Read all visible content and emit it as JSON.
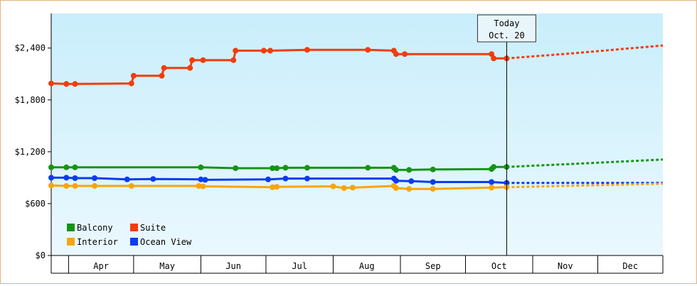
{
  "chart_data": {
    "type": "line",
    "ylim": [
      0,
      2800
    ],
    "y_ticks": [
      "$0",
      "$600",
      "$1,200",
      "$1,800",
      "$2,400"
    ],
    "y_tick_values": [
      0,
      600,
      1200,
      1800,
      2400
    ],
    "x_range": [
      "2016-03-24",
      "2016-12-31"
    ],
    "months": [
      {
        "label": "Apr",
        "start": "2016-04-01",
        "end": "2016-05-01"
      },
      {
        "label": "May",
        "start": "2016-05-01",
        "end": "2016-06-01"
      },
      {
        "label": "Jun",
        "start": "2016-06-01",
        "end": "2016-07-01"
      },
      {
        "label": "Jul",
        "start": "2016-07-01",
        "end": "2016-08-01"
      },
      {
        "label": "Aug",
        "start": "2016-08-01",
        "end": "2016-09-01"
      },
      {
        "label": "Sep",
        "start": "2016-09-01",
        "end": "2016-10-01"
      },
      {
        "label": "Oct",
        "start": "2016-10-01",
        "end": "2016-11-01"
      },
      {
        "label": "Nov",
        "start": "2016-11-01",
        "end": "2016-12-01"
      },
      {
        "label": "Dec",
        "start": "2016-12-01",
        "end": "2016-12-31"
      }
    ],
    "today": {
      "date": "2016-10-20",
      "label_line1": "Today",
      "label_line2": "Oct. 20"
    },
    "grid": false,
    "legend_placement": "bottom-left",
    "background_gradient": [
      "#c9eefb",
      "#eaf8fe"
    ],
    "series": [
      {
        "name": "Suite",
        "color": "#f23c0c",
        "points": [
          [
            "2016-03-24",
            1990
          ],
          [
            "2016-03-31",
            1985
          ],
          [
            "2016-04-04",
            1985
          ],
          [
            "2016-04-30",
            1990
          ],
          [
            "2016-05-01",
            2080
          ],
          [
            "2016-05-14",
            2080
          ],
          [
            "2016-05-15",
            2170
          ],
          [
            "2016-05-27",
            2170
          ],
          [
            "2016-05-28",
            2260
          ],
          [
            "2016-06-02",
            2260
          ],
          [
            "2016-06-16",
            2260
          ],
          [
            "2016-06-17",
            2370
          ],
          [
            "2016-06-30",
            2370
          ],
          [
            "2016-07-03",
            2370
          ],
          [
            "2016-07-20",
            2380
          ],
          [
            "2016-08-17",
            2380
          ],
          [
            "2016-08-29",
            2370
          ],
          [
            "2016-08-30",
            2330
          ],
          [
            "2016-09-03",
            2330
          ],
          [
            "2016-10-13",
            2330
          ],
          [
            "2016-10-14",
            2280
          ],
          [
            "2016-10-20",
            2280
          ]
        ],
        "forecast": [
          [
            "2016-10-20",
            2280
          ],
          [
            "2016-11-20",
            2340
          ],
          [
            "2016-12-31",
            2430
          ]
        ]
      },
      {
        "name": "Balcony",
        "color": "#149514",
        "points": [
          [
            "2016-03-24",
            1020
          ],
          [
            "2016-03-31",
            1020
          ],
          [
            "2016-04-04",
            1020
          ],
          [
            "2016-06-01",
            1020
          ],
          [
            "2016-06-17",
            1010
          ],
          [
            "2016-07-04",
            1010
          ],
          [
            "2016-07-06",
            1010
          ],
          [
            "2016-07-10",
            1015
          ],
          [
            "2016-07-20",
            1015
          ],
          [
            "2016-08-17",
            1015
          ],
          [
            "2016-08-29",
            1015
          ],
          [
            "2016-08-30",
            990
          ],
          [
            "2016-09-05",
            990
          ],
          [
            "2016-09-16",
            995
          ],
          [
            "2016-10-13",
            1000
          ],
          [
            "2016-10-14",
            1025
          ],
          [
            "2016-10-20",
            1025
          ]
        ],
        "forecast": [
          [
            "2016-10-20",
            1025
          ],
          [
            "2016-11-20",
            1060
          ],
          [
            "2016-12-31",
            1110
          ]
        ]
      },
      {
        "name": "Ocean View",
        "color": "#0b3cf0",
        "points": [
          [
            "2016-03-24",
            900
          ],
          [
            "2016-03-31",
            900
          ],
          [
            "2016-04-04",
            895
          ],
          [
            "2016-04-13",
            895
          ],
          [
            "2016-04-28",
            880
          ],
          [
            "2016-05-10",
            885
          ],
          [
            "2016-06-01",
            880
          ],
          [
            "2016-06-03",
            875
          ],
          [
            "2016-07-02",
            880
          ],
          [
            "2016-07-10",
            890
          ],
          [
            "2016-07-20",
            890
          ],
          [
            "2016-08-29",
            890
          ],
          [
            "2016-08-30",
            865
          ],
          [
            "2016-09-06",
            860
          ],
          [
            "2016-09-16",
            850
          ],
          [
            "2016-10-13",
            850
          ],
          [
            "2016-10-20",
            840
          ]
        ],
        "forecast": [
          [
            "2016-10-20",
            840
          ],
          [
            "2016-12-31",
            840
          ]
        ]
      },
      {
        "name": "Interior",
        "color": "#f7a50c",
        "points": [
          [
            "2016-03-24",
            810
          ],
          [
            "2016-03-31",
            805
          ],
          [
            "2016-04-04",
            805
          ],
          [
            "2016-04-13",
            805
          ],
          [
            "2016-04-30",
            805
          ],
          [
            "2016-05-31",
            805
          ],
          [
            "2016-06-02",
            800
          ],
          [
            "2016-07-04",
            790
          ],
          [
            "2016-07-06",
            795
          ],
          [
            "2016-08-01",
            800
          ],
          [
            "2016-08-06",
            780
          ],
          [
            "2016-08-10",
            785
          ],
          [
            "2016-08-29",
            805
          ],
          [
            "2016-08-30",
            780
          ],
          [
            "2016-09-05",
            770
          ],
          [
            "2016-09-16",
            770
          ],
          [
            "2016-10-13",
            785
          ],
          [
            "2016-10-20",
            790
          ]
        ],
        "forecast": [
          [
            "2016-10-20",
            790
          ],
          [
            "2016-12-31",
            830
          ]
        ]
      }
    ],
    "legend": [
      {
        "name": "Balcony",
        "color": "#149514"
      },
      {
        "name": "Suite",
        "color": "#f23c0c"
      },
      {
        "name": "Interior",
        "color": "#f7a50c"
      },
      {
        "name": "Ocean View",
        "color": "#0b3cf0"
      }
    ]
  }
}
